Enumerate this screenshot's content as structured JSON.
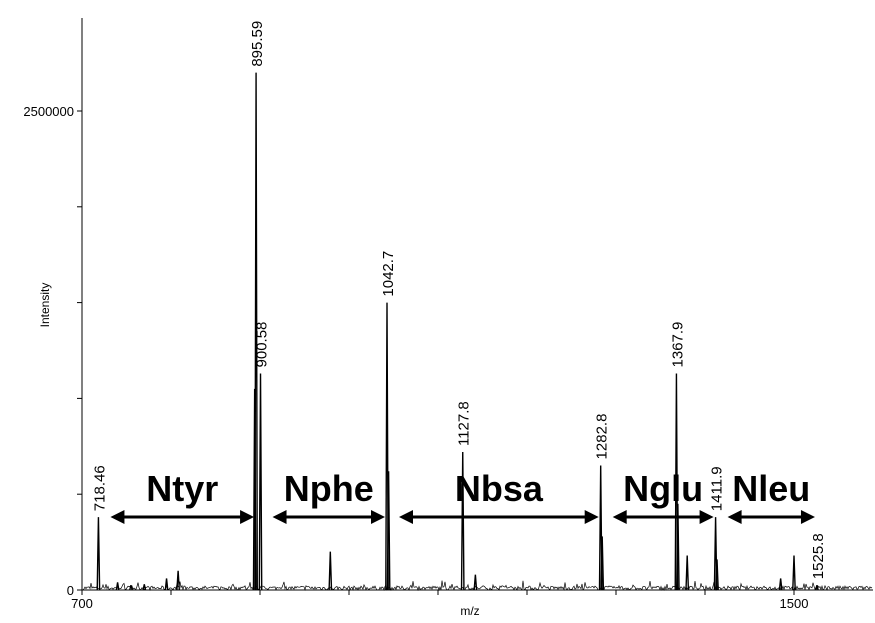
{
  "chart_data": {
    "type": "line",
    "title": "",
    "xlabel": "m/z",
    "ylabel": "Intensity",
    "xlim": [
      700,
      1575
    ],
    "ylim": [
      0,
      2930000
    ],
    "x_tick_labels": [
      "700",
      "1500"
    ],
    "y_tick_labels": [
      "0",
      "2500000"
    ],
    "grid": false,
    "peaks": [
      {
        "mz": 718.46,
        "intensity": 380000,
        "label": "718.46"
      },
      {
        "mz": 740,
        "intensity": 40000,
        "label": ""
      },
      {
        "mz": 755,
        "intensity": 25000,
        "label": ""
      },
      {
        "mz": 770,
        "intensity": 30000,
        "label": ""
      },
      {
        "mz": 795,
        "intensity": 60000,
        "label": ""
      },
      {
        "mz": 808,
        "intensity": 100000,
        "label": ""
      },
      {
        "mz": 895.59,
        "intensity": 2700000,
        "label": "895.59"
      },
      {
        "mz": 894.0,
        "intensity": 1050000,
        "label": ""
      },
      {
        "mz": 900.58,
        "intensity": 1130000,
        "label": "900.58"
      },
      {
        "mz": 979,
        "intensity": 200000,
        "label": ""
      },
      {
        "mz": 1042.7,
        "intensity": 1500000,
        "label": "1042.7"
      },
      {
        "mz": 1044.5,
        "intensity": 620000,
        "label": ""
      },
      {
        "mz": 1127.8,
        "intensity": 720000,
        "label": "1127.8"
      },
      {
        "mz": 1142,
        "intensity": 80000,
        "label": ""
      },
      {
        "mz": 1282.8,
        "intensity": 650000,
        "label": "1282.8"
      },
      {
        "mz": 1284.5,
        "intensity": 280000,
        "label": ""
      },
      {
        "mz": 1367.9,
        "intensity": 1130000,
        "label": "1367.9"
      },
      {
        "mz": 1369.5,
        "intensity": 450000,
        "label": ""
      },
      {
        "mz": 1380,
        "intensity": 180000,
        "label": ""
      },
      {
        "mz": 1411.9,
        "intensity": 380000,
        "label": "1411.9"
      },
      {
        "mz": 1413.5,
        "intensity": 160000,
        "label": ""
      },
      {
        "mz": 1485,
        "intensity": 60000,
        "label": ""
      },
      {
        "mz": 1500,
        "intensity": 180000,
        "label": ""
      },
      {
        "mz": 1525.8,
        "intensity": 25000,
        "label": "1525.8"
      }
    ],
    "regions": [
      {
        "label": "Ntyr",
        "start": 718.46,
        "end": 895.59
      },
      {
        "label": "Nphe",
        "start": 900.58,
        "end": 1042.7
      },
      {
        "label": "Nbsa",
        "start": 1042.7,
        "end": 1282.8
      },
      {
        "label": "Nglu",
        "start": 1282.8,
        "end": 1411.9
      },
      {
        "label": "Nleu",
        "start": 1411.9,
        "end": 1525.8
      }
    ]
  },
  "colors": {
    "line": "#000000",
    "background": "#ffffff"
  }
}
